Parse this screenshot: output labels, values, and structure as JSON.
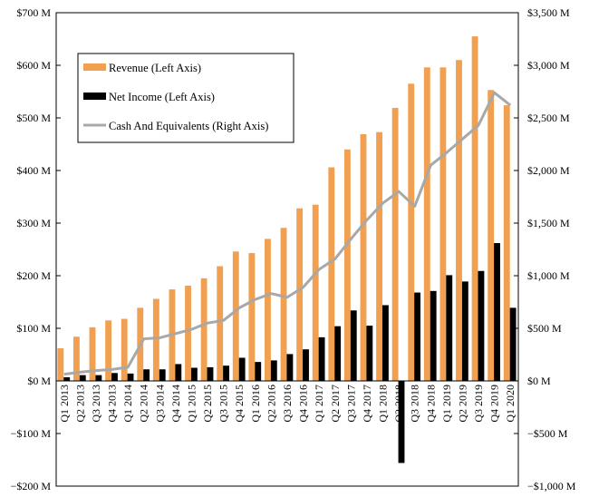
{
  "chart_data": {
    "type": "bar",
    "categories": [
      "Q1 2013",
      "Q2 2013",
      "Q3 2013",
      "Q4 2013",
      "Q1 2014",
      "Q2 2014",
      "Q3 2014",
      "Q4 2014",
      "Q1 2015",
      "Q2 2015",
      "Q3 2015",
      "Q4 2015",
      "Q1 2016",
      "Q2 2016",
      "Q3 2016",
      "Q4 2016",
      "Q1 2017",
      "Q2 2017",
      "Q3 2017",
      "Q4 2017",
      "Q1 2018",
      "Q2 2018",
      "Q3 2018",
      "Q4 2018",
      "Q1 2019",
      "Q2 2019",
      "Q3 2019",
      "Q4 2019",
      "Q1 2020"
    ],
    "series": [
      {
        "name": "Revenue (Left Axis)",
        "type": "bar",
        "axis": "left",
        "color": "#F0A050",
        "values": [
          62,
          84,
          102,
          115,
          118,
          139,
          156,
          174,
          181,
          195,
          218,
          246,
          243,
          270,
          291,
          328,
          335,
          406,
          440,
          469,
          473,
          519,
          565,
          596,
          596,
          610,
          655,
          553,
          524
        ]
      },
      {
        "name": "Net Income (Left Axis)",
        "type": "bar",
        "axis": "left",
        "color": "#000000",
        "values": [
          7,
          11,
          11,
          15,
          14,
          22,
          22,
          32,
          25,
          26,
          29,
          44,
          36,
          39,
          51,
          60,
          83,
          104,
          134,
          105,
          144,
          -156,
          168,
          171,
          201,
          189,
          209,
          262,
          139
        ]
      },
      {
        "name": "Cash And Equivalents (Right Axis)",
        "type": "line",
        "axis": "right",
        "color": "#A8A8A8",
        "values": [
          64,
          83,
          98,
          109,
          130,
          400,
          410,
          450,
          490,
          550,
          575,
          695,
          775,
          830,
          795,
          890,
          1060,
          1160,
          1350,
          1530,
          1690,
          1800,
          1660,
          2050,
          2170,
          2300,
          2430,
          2740,
          2620
        ]
      }
    ],
    "y_left": {
      "ylim": [
        -200,
        700
      ],
      "ticks": [
        -200,
        -100,
        0,
        100,
        200,
        300,
        400,
        500,
        600,
        700
      ],
      "tick_labels": [
        "−$200 M",
        "−$100 M",
        "$0 M",
        "$100 M",
        "$200 M",
        "$300 M",
        "$400 M",
        "$500 M",
        "$600 M",
        "$700 M"
      ]
    },
    "y_right": {
      "ylim": [
        -1000,
        3500
      ],
      "ticks": [
        -1000,
        -500,
        0,
        500,
        1000,
        1500,
        2000,
        2500,
        3000,
        3500
      ],
      "tick_labels": [
        "−$1,000 M",
        "−$500 M",
        "$0 M",
        "$500 M",
        "$1,000 M",
        "$1,500 M",
        "$2,000 M",
        "$2,500 M",
        "$3,000 M",
        "$3,500 M"
      ]
    },
    "legend": {
      "placement": "top-left",
      "entries": [
        "Revenue (Left Axis)",
        "Net Income (Left Axis)",
        "Cash And Equivalents (Right Axis)"
      ]
    },
    "grid": false,
    "title": "",
    "xlabel": "",
    "ylabel": ""
  }
}
